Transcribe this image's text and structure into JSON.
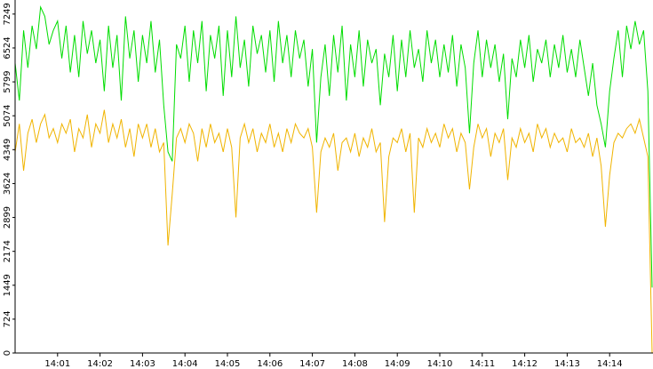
{
  "chart_data": {
    "type": "line",
    "categories": [
      null,
      null,
      null,
      null,
      null,
      null,
      null,
      null,
      null,
      null,
      "14:01",
      null,
      null,
      null,
      null,
      null,
      null,
      null,
      null,
      null,
      "14:02",
      null,
      null,
      null,
      null,
      null,
      null,
      null,
      null,
      null,
      "14:03",
      null,
      null,
      null,
      null,
      null,
      null,
      null,
      null,
      null,
      "14:04",
      null,
      null,
      null,
      null,
      null,
      null,
      null,
      null,
      null,
      "14:05",
      null,
      null,
      null,
      null,
      null,
      null,
      null,
      null,
      null,
      "14:06",
      null,
      null,
      null,
      null,
      null,
      null,
      null,
      null,
      null,
      "14:07",
      null,
      null,
      null,
      null,
      null,
      null,
      null,
      null,
      null,
      "14:08",
      null,
      null,
      null,
      null,
      null,
      null,
      null,
      null,
      null,
      "14:09",
      null,
      null,
      null,
      null,
      null,
      null,
      null,
      null,
      null,
      "14:10",
      null,
      null,
      null,
      null,
      null,
      null,
      null,
      null,
      null,
      "14:11",
      null,
      null,
      null,
      null,
      null,
      null,
      null,
      null,
      null,
      "14:12",
      null,
      null,
      null,
      null,
      null,
      null,
      null,
      null,
      null,
      "14:13",
      null,
      null,
      null,
      null,
      null,
      null,
      null,
      null,
      null,
      "14:14",
      null,
      null,
      null,
      null,
      null,
      null,
      null,
      null,
      null,
      null
    ],
    "series": [
      {
        "color": "#00dd00",
        "values": [
          6200,
          5400,
          6900,
          6100,
          7000,
          6500,
          7400,
          7200,
          6600,
          6900,
          7100,
          6300,
          7000,
          6000,
          6800,
          5900,
          7100,
          6400,
          6900,
          6200,
          6700,
          5600,
          7000,
          6100,
          6800,
          5400,
          7200,
          6300,
          6900,
          5800,
          6800,
          6200,
          7100,
          6000,
          6700,
          5300,
          4300,
          4100,
          6600,
          6300,
          7000,
          5800,
          6900,
          6200,
          7100,
          5600,
          6800,
          6300,
          7000,
          5500,
          6900,
          5900,
          7200,
          6100,
          6700,
          5700,
          7000,
          6400,
          6800,
          6000,
          6900,
          5800,
          7100,
          6200,
          6800,
          5900,
          6900,
          6300,
          6700,
          5700,
          6500,
          4500,
          5900,
          6600,
          5500,
          6800,
          6000,
          7000,
          5400,
          6600,
          5900,
          6900,
          5700,
          6700,
          6200,
          6500,
          5300,
          6400,
          5900,
          6800,
          5600,
          6700,
          5900,
          6900,
          6100,
          6500,
          5800,
          6900,
          6200,
          6700,
          5900,
          6600,
          6000,
          6800,
          5700,
          6600,
          6100,
          4700,
          6200,
          6900,
          5900,
          6700,
          6100,
          6600,
          5800,
          6400,
          5000,
          6300,
          5900,
          6700,
          6100,
          6800,
          5800,
          6500,
          6200,
          6700,
          5900,
          6600,
          6100,
          6800,
          6000,
          6500,
          5900,
          6700,
          6100,
          5500,
          6200,
          5300,
          4900,
          4400,
          5600,
          6300,
          6900,
          5900,
          7000,
          6500,
          7100,
          6600,
          6900,
          5600,
          1400
        ]
      },
      {
        "color": "#f0b400",
        "values": [
          4300,
          4900,
          3900,
          4700,
          5000,
          4500,
          4900,
          5100,
          4600,
          4800,
          4500,
          4900,
          4700,
          5000,
          4300,
          4800,
          4600,
          5100,
          4400,
          4900,
          4700,
          5200,
          4500,
          4900,
          4600,
          5000,
          4400,
          4800,
          4200,
          4900,
          4600,
          4900,
          4400,
          4800,
          4300,
          4500,
          2300,
          3400,
          4600,
          4800,
          4500,
          4900,
          4700,
          4100,
          4800,
          4400,
          4900,
          4500,
          4700,
          4300,
          4800,
          4400,
          2900,
          4600,
          4900,
          4500,
          4800,
          4300,
          4700,
          4500,
          4900,
          4400,
          4700,
          4300,
          4800,
          4500,
          4900,
          4700,
          4600,
          4800,
          4400,
          3000,
          4300,
          4600,
          4400,
          4700,
          3900,
          4500,
          4600,
          4300,
          4700,
          4200,
          4600,
          4400,
          4800,
          4300,
          4500,
          2800,
          4200,
          4600,
          4500,
          4800,
          4300,
          4700,
          3000,
          4600,
          4400,
          4800,
          4500,
          4700,
          4400,
          4900,
          4600,
          4800,
          4300,
          4700,
          4500,
          3500,
          4400,
          4900,
          4600,
          4800,
          4200,
          4700,
          4500,
          4800,
          3700,
          4600,
          4400,
          4800,
          4500,
          4700,
          4300,
          4900,
          4600,
          4800,
          4400,
          4700,
          4500,
          4600,
          4300,
          4800,
          4500,
          4600,
          4400,
          4700,
          4200,
          4600,
          4000,
          2700,
          3800,
          4500,
          4700,
          4600,
          4800,
          4900,
          4700,
          5000,
          4600,
          4200,
          0
        ]
      }
    ],
    "ylim": [
      0,
      7550
    ],
    "yticks": [
      0,
      724,
      1449,
      2174,
      2899,
      3624,
      4349,
      5074,
      5799,
      6524,
      7249
    ]
  }
}
